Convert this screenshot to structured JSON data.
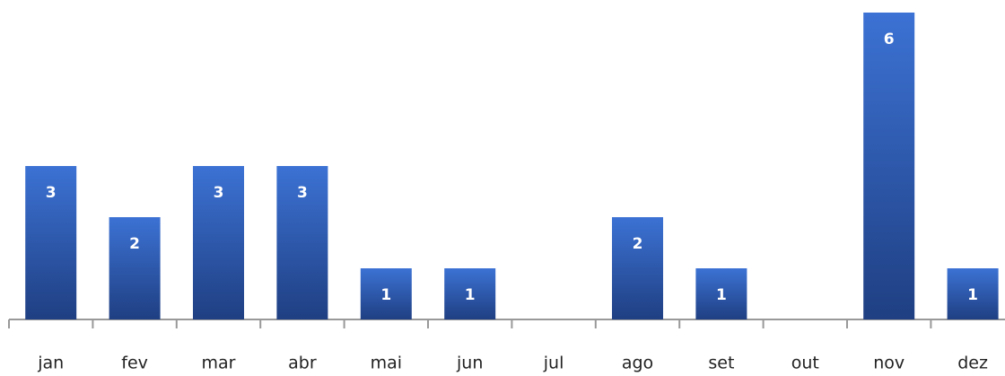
{
  "chart_data": {
    "type": "bar",
    "categories": [
      "jan",
      "fev",
      "mar",
      "abr",
      "mai",
      "jun",
      "jul",
      "ago",
      "set",
      "out",
      "nov",
      "dez"
    ],
    "values": [
      3,
      2,
      3,
      3,
      1,
      1,
      0,
      2,
      1,
      0,
      6,
      1
    ],
    "color": "#2f5fb8",
    "ylim": [
      0,
      6
    ]
  }
}
